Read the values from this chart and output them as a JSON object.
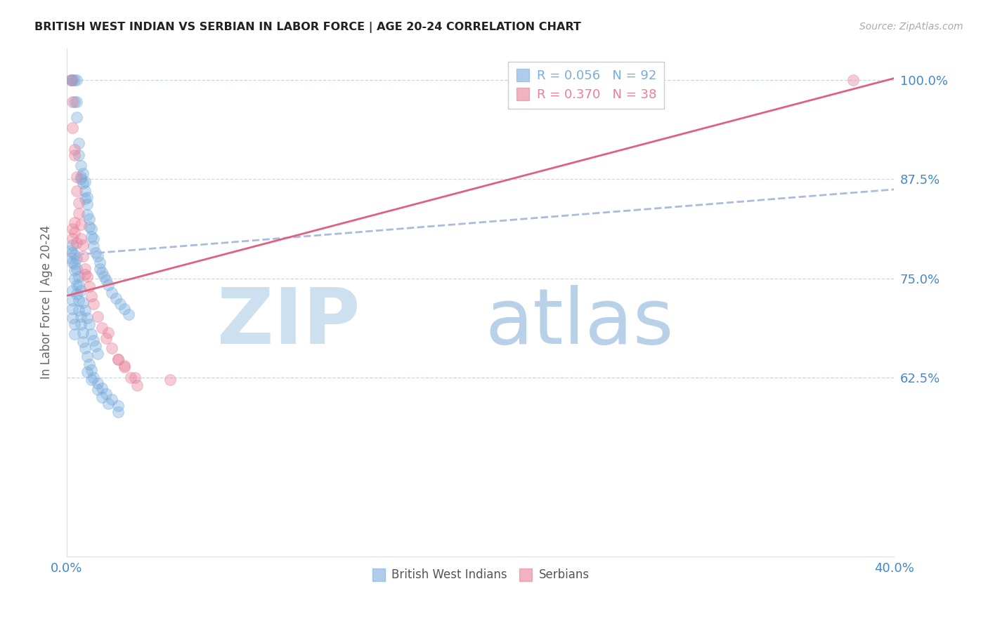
{
  "title": "BRITISH WEST INDIAN VS SERBIAN IN LABOR FORCE | AGE 20-24 CORRELATION CHART",
  "source": "Source: ZipAtlas.com",
  "ylabel": "In Labor Force | Age 20-24",
  "xlim": [
    0.0,
    0.4
  ],
  "ylim": [
    0.4,
    1.04
  ],
  "xticks": [
    0.0,
    0.05,
    0.1,
    0.15,
    0.2,
    0.25,
    0.3,
    0.35,
    0.4
  ],
  "xticklabels": [
    "0.0%",
    "",
    "",
    "",
    "",
    "",
    "",
    "",
    "40.0%"
  ],
  "yticks": [
    0.625,
    0.75,
    0.875,
    1.0
  ],
  "yticklabels": [
    "62.5%",
    "75.0%",
    "87.5%",
    "100.0%"
  ],
  "blue_R": 0.056,
  "blue_N": 92,
  "pink_R": 0.37,
  "pink_N": 38,
  "blue_scatter_color": "#7aaddc",
  "pink_scatter_color": "#e8809a",
  "blue_line_color": "#5588cc",
  "pink_line_color": "#e06080",
  "blue_line_dash_color": "#aabbdd",
  "grid_color": "#c8d8e8",
  "axis_color": "#4488cc",
  "background_color": "#ffffff",
  "blue_trend": [
    0.0,
    0.779,
    0.4,
    0.862
  ],
  "pink_trend": [
    0.0,
    0.728,
    0.4,
    1.002
  ],
  "blue_x": [
    0.002,
    0.003,
    0.003,
    0.004,
    0.004,
    0.005,
    0.005,
    0.005,
    0.006,
    0.006,
    0.007,
    0.007,
    0.007,
    0.008,
    0.008,
    0.009,
    0.009,
    0.009,
    0.01,
    0.01,
    0.01,
    0.011,
    0.011,
    0.012,
    0.012,
    0.013,
    0.013,
    0.014,
    0.015,
    0.016,
    0.016,
    0.017,
    0.018,
    0.019,
    0.02,
    0.022,
    0.024,
    0.026,
    0.028,
    0.03,
    0.004,
    0.004,
    0.005,
    0.005,
    0.006,
    0.006,
    0.007,
    0.008,
    0.009,
    0.01,
    0.011,
    0.012,
    0.013,
    0.014,
    0.015,
    0.002,
    0.002,
    0.003,
    0.003,
    0.003,
    0.004,
    0.004,
    0.005,
    0.005,
    0.006,
    0.006,
    0.007,
    0.007,
    0.008,
    0.008,
    0.009,
    0.01,
    0.011,
    0.012,
    0.013,
    0.015,
    0.017,
    0.019,
    0.022,
    0.025,
    0.003,
    0.003,
    0.003,
    0.003,
    0.004,
    0.004,
    0.01,
    0.012,
    0.015,
    0.017,
    0.02,
    0.025
  ],
  "blue_y": [
    1.0,
    1.0,
    1.0,
    1.0,
    0.972,
    1.0,
    0.972,
    0.953,
    0.92,
    0.905,
    0.892,
    0.878,
    0.875,
    0.882,
    0.87,
    0.872,
    0.86,
    0.85,
    0.852,
    0.843,
    0.83,
    0.825,
    0.815,
    0.812,
    0.803,
    0.8,
    0.79,
    0.782,
    0.778,
    0.77,
    0.762,
    0.758,
    0.752,
    0.748,
    0.742,
    0.732,
    0.725,
    0.718,
    0.712,
    0.705,
    0.78,
    0.768,
    0.775,
    0.762,
    0.752,
    0.742,
    0.735,
    0.72,
    0.71,
    0.7,
    0.692,
    0.68,
    0.672,
    0.665,
    0.655,
    0.785,
    0.775,
    0.792,
    0.782,
    0.77,
    0.76,
    0.75,
    0.742,
    0.73,
    0.722,
    0.71,
    0.702,
    0.692,
    0.682,
    0.67,
    0.662,
    0.652,
    0.642,
    0.635,
    0.625,
    0.618,
    0.612,
    0.605,
    0.598,
    0.59,
    0.735,
    0.722,
    0.712,
    0.7,
    0.692,
    0.68,
    0.632,
    0.622,
    0.61,
    0.6,
    0.592,
    0.582
  ],
  "pink_x": [
    0.002,
    0.003,
    0.003,
    0.004,
    0.004,
    0.005,
    0.005,
    0.006,
    0.006,
    0.007,
    0.007,
    0.008,
    0.008,
    0.009,
    0.01,
    0.011,
    0.012,
    0.013,
    0.015,
    0.017,
    0.019,
    0.022,
    0.025,
    0.028,
    0.031,
    0.034,
    0.05,
    0.38,
    0.003,
    0.003,
    0.004,
    0.004,
    0.005,
    0.009,
    0.02,
    0.025,
    0.028,
    0.033
  ],
  "pink_y": [
    1.0,
    0.972,
    0.94,
    0.912,
    0.905,
    0.878,
    0.86,
    0.845,
    0.832,
    0.818,
    0.8,
    0.792,
    0.778,
    0.762,
    0.752,
    0.74,
    0.728,
    0.718,
    0.702,
    0.688,
    0.675,
    0.662,
    0.648,
    0.638,
    0.625,
    0.615,
    0.622,
    1.0,
    0.812,
    0.8,
    0.82,
    0.808,
    0.795,
    0.755,
    0.682,
    0.648,
    0.64,
    0.625
  ]
}
